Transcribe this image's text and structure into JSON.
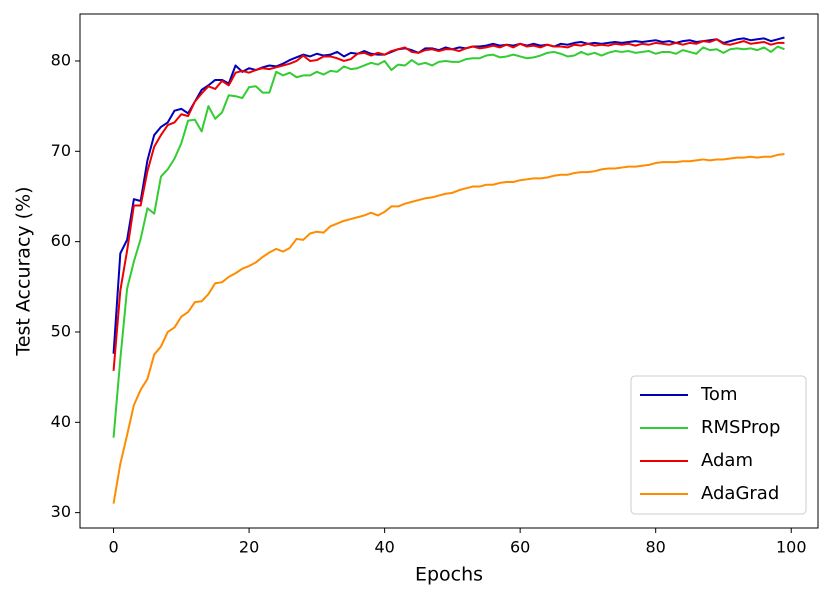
{
  "chart_data": {
    "type": "line",
    "x_label": "Epochs",
    "y_label": "Test Accuracy (%)",
    "x": [
      0,
      1,
      2,
      3,
      4,
      5,
      6,
      7,
      8,
      9,
      10,
      11,
      12,
      13,
      14,
      15,
      16,
      17,
      18,
      19,
      20,
      21,
      22,
      23,
      24,
      25,
      26,
      27,
      28,
      29,
      30,
      31,
      32,
      33,
      34,
      35,
      36,
      37,
      38,
      39,
      40,
      41,
      42,
      43,
      44,
      45,
      46,
      47,
      48,
      49,
      50,
      51,
      52,
      53,
      54,
      55,
      56,
      57,
      58,
      59,
      60,
      61,
      62,
      63,
      64,
      65,
      66,
      67,
      68,
      69,
      70,
      71,
      72,
      73,
      74,
      75,
      76,
      77,
      78,
      79,
      80,
      81,
      82,
      83,
      84,
      85,
      86,
      87,
      88,
      89,
      90,
      91,
      92,
      93,
      94,
      95,
      96,
      97,
      98,
      99
    ],
    "series": [
      {
        "name": "Tom",
        "color": "#0000bb",
        "values": [
          47.6,
          58.7,
          60.2,
          64.7,
          64.5,
          69.0,
          71.8,
          72.7,
          73.2,
          74.5,
          74.7,
          74.2,
          75.5,
          76.8,
          77.3,
          77.9,
          77.9,
          77.5,
          79.5,
          78.8,
          79.2,
          79.0,
          79.3,
          79.5,
          79.4,
          79.7,
          80.1,
          80.4,
          80.7,
          80.5,
          80.8,
          80.6,
          80.7,
          81.0,
          80.5,
          80.9,
          80.8,
          81.1,
          80.8,
          80.7,
          80.7,
          81.0,
          81.3,
          81.4,
          81.2,
          80.9,
          81.4,
          81.4,
          81.2,
          81.5,
          81.3,
          81.5,
          81.4,
          81.6,
          81.6,
          81.7,
          81.9,
          81.7,
          81.8,
          81.7,
          81.9,
          81.7,
          81.9,
          81.7,
          81.8,
          81.6,
          81.9,
          81.8,
          82.0,
          82.1,
          81.9,
          82.0,
          81.9,
          82.0,
          82.1,
          82.0,
          82.1,
          82.2,
          82.1,
          82.2,
          82.3,
          82.1,
          82.2,
          82.0,
          82.2,
          82.3,
          82.1,
          82.2,
          82.3,
          82.4,
          82.0,
          82.2,
          82.4,
          82.5,
          82.3,
          82.4,
          82.5,
          82.2,
          82.4,
          82.6
        ]
      },
      {
        "name": "RMSProp",
        "color": "#33cc33",
        "values": [
          38.3,
          47.0,
          54.8,
          57.8,
          60.3,
          63.7,
          63.1,
          67.2,
          68.0,
          69.2,
          70.9,
          73.4,
          73.5,
          72.2,
          75.0,
          73.6,
          74.3,
          76.2,
          76.1,
          75.9,
          77.1,
          77.2,
          76.5,
          76.5,
          78.8,
          78.4,
          78.7,
          78.2,
          78.4,
          78.4,
          78.8,
          78.5,
          78.9,
          78.8,
          79.4,
          79.1,
          79.2,
          79.5,
          79.8,
          79.6,
          80.0,
          79.0,
          79.6,
          79.5,
          80.1,
          79.6,
          79.8,
          79.5,
          79.9,
          80.0,
          79.9,
          79.9,
          80.2,
          80.3,
          80.3,
          80.6,
          80.7,
          80.4,
          80.5,
          80.7,
          80.5,
          80.3,
          80.4,
          80.6,
          80.9,
          81.0,
          80.8,
          80.5,
          80.6,
          81.0,
          80.7,
          80.9,
          80.6,
          80.9,
          81.1,
          81.0,
          81.1,
          80.9,
          81.0,
          81.1,
          80.8,
          81.0,
          81.0,
          80.8,
          81.2,
          81.0,
          80.8,
          81.5,
          81.2,
          81.3,
          80.9,
          81.3,
          81.4,
          81.3,
          81.4,
          81.2,
          81.5,
          81.0,
          81.6,
          81.3
        ]
      },
      {
        "name": "Adam",
        "color": "#ee0000",
        "values": [
          45.7,
          54.6,
          59.0,
          64.0,
          64.0,
          67.8,
          70.5,
          71.8,
          72.9,
          73.2,
          74.1,
          73.9,
          75.5,
          76.4,
          77.2,
          76.9,
          77.8,
          77.3,
          78.7,
          78.9,
          78.7,
          79.0,
          79.2,
          79.1,
          79.3,
          79.5,
          79.7,
          80.0,
          80.6,
          80.0,
          80.1,
          80.5,
          80.5,
          80.3,
          80.0,
          80.2,
          80.8,
          80.9,
          80.6,
          80.9,
          80.7,
          81.1,
          81.3,
          81.5,
          81.0,
          80.9,
          81.2,
          81.3,
          81.1,
          81.3,
          81.3,
          81.1,
          81.4,
          81.6,
          81.4,
          81.5,
          81.7,
          81.5,
          81.8,
          81.5,
          81.9,
          81.6,
          81.7,
          81.5,
          81.8,
          81.6,
          81.6,
          81.5,
          81.8,
          81.7,
          81.9,
          81.7,
          81.8,
          81.7,
          81.9,
          81.8,
          81.9,
          81.7,
          81.9,
          81.8,
          82.0,
          81.9,
          81.8,
          82.0,
          81.8,
          82.0,
          81.9,
          82.2,
          82.1,
          82.4,
          81.9,
          81.8,
          82.0,
          82.2,
          81.9,
          82.0,
          82.1,
          81.8,
          82.0,
          82.0
        ]
      },
      {
        "name": "AdaGrad",
        "color": "#ff8c00",
        "values": [
          31.0,
          35.4,
          38.6,
          41.9,
          43.6,
          44.8,
          47.5,
          48.4,
          50.0,
          50.5,
          51.7,
          52.2,
          53.3,
          53.4,
          54.2,
          55.4,
          55.5,
          56.1,
          56.5,
          57.0,
          57.3,
          57.7,
          58.3,
          58.8,
          59.2,
          58.9,
          59.3,
          60.3,
          60.2,
          60.9,
          61.1,
          61.0,
          61.7,
          62.0,
          62.3,
          62.5,
          62.7,
          62.9,
          63.2,
          62.9,
          63.3,
          63.9,
          63.9,
          64.2,
          64.4,
          64.6,
          64.8,
          64.9,
          65.1,
          65.3,
          65.4,
          65.7,
          65.9,
          66.1,
          66.1,
          66.3,
          66.3,
          66.5,
          66.6,
          66.6,
          66.8,
          66.9,
          67.0,
          67.0,
          67.1,
          67.3,
          67.4,
          67.4,
          67.6,
          67.7,
          67.7,
          67.8,
          68.0,
          68.1,
          68.1,
          68.2,
          68.3,
          68.3,
          68.4,
          68.5,
          68.7,
          68.8,
          68.8,
          68.8,
          68.9,
          68.9,
          69.0,
          69.1,
          69.0,
          69.1,
          69.1,
          69.2,
          69.3,
          69.3,
          69.4,
          69.3,
          69.4,
          69.4,
          69.6,
          69.7
        ]
      }
    ],
    "xlim": [
      -4.95,
      103.95
    ],
    "xticks": [
      0,
      20,
      40,
      60,
      80,
      100
    ],
    "ylim": [
      28.3,
      85.2
    ],
    "yticks": [
      30,
      40,
      50,
      60,
      70,
      80
    ],
    "grid": false,
    "legend": "lower right"
  }
}
